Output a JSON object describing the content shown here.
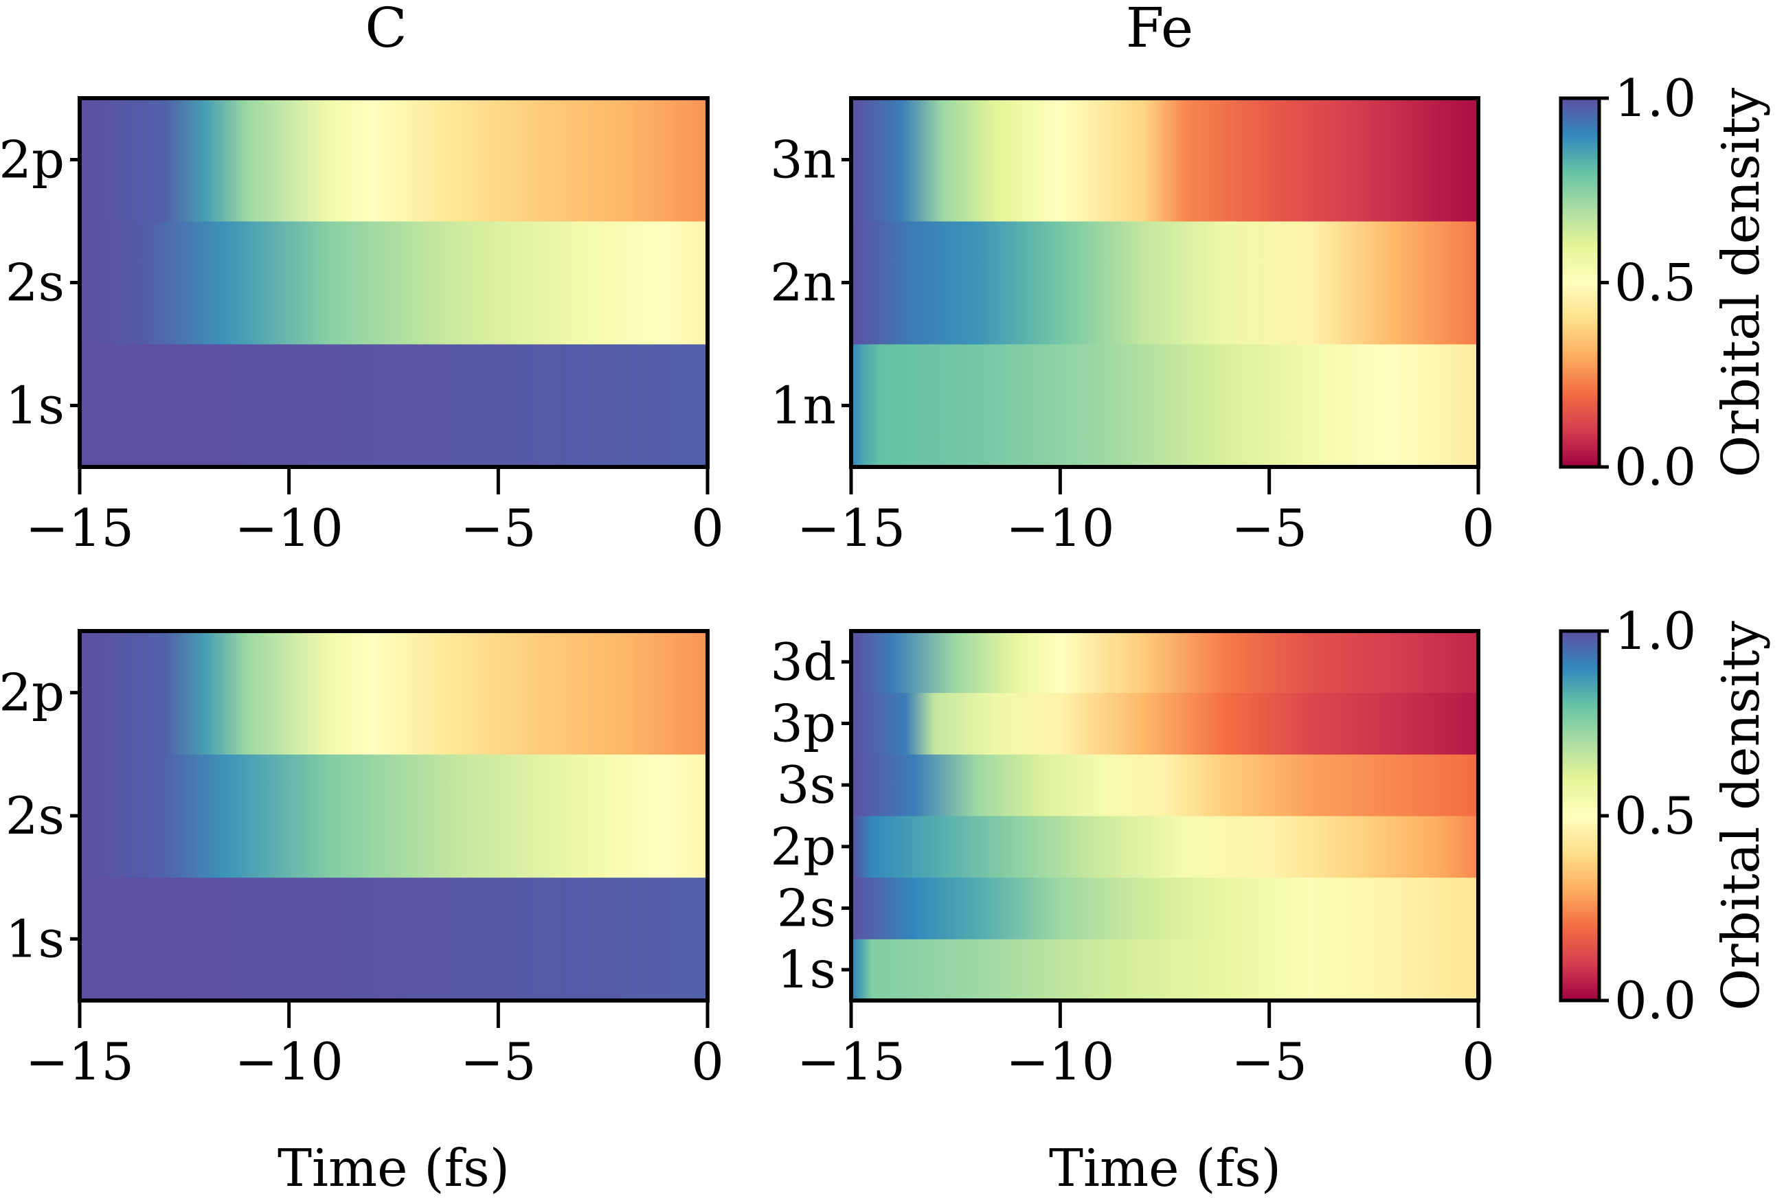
{
  "colormap": {
    "name": "Spectral",
    "stops": [
      "#9e0142",
      "#d53e4f",
      "#f46d43",
      "#fdae61",
      "#fee08b",
      "#ffffbf",
      "#e6f598",
      "#abdda4",
      "#66c2a5",
      "#3288bd",
      "#5e4fa2"
    ]
  },
  "chart_data": [
    {
      "type": "heatmap",
      "title": "C",
      "xlabel": "",
      "ylabel": "",
      "xlim": [
        -15,
        0
      ],
      "xticks": [
        -15,
        -10,
        -5,
        0
      ],
      "xtick_labels": [
        "−15",
        "−10",
        "−5",
        "0"
      ],
      "rows": [
        {
          "label": "1s",
          "t": [
            -15,
            -10,
            -5,
            0
          ],
          "values": [
            1.0,
            0.995,
            0.985,
            0.97
          ]
        },
        {
          "label": "2s",
          "t": [
            -15,
            -13.5,
            -11.5,
            -9,
            -6,
            -3,
            -1,
            0
          ],
          "values": [
            1.0,
            0.98,
            0.88,
            0.75,
            0.64,
            0.55,
            0.5,
            0.46
          ]
        },
        {
          "label": "2p",
          "t": [
            -15,
            -13,
            -12,
            -11,
            -9,
            -8,
            -6,
            -4,
            -2,
            0
          ],
          "values": [
            1.0,
            0.97,
            0.86,
            0.72,
            0.55,
            0.5,
            0.42,
            0.36,
            0.32,
            0.26
          ]
        }
      ]
    },
    {
      "type": "heatmap",
      "title": "Fe",
      "xlabel": "",
      "ylabel": "",
      "xlim": [
        -15,
        0
      ],
      "xticks": [
        -15,
        -10,
        -5,
        0
      ],
      "xtick_labels": [
        "−15",
        "−10",
        "−5",
        "0"
      ],
      "rows": [
        {
          "label": "1n",
          "t": [
            -15,
            -14.7,
            -14.3,
            -12,
            -9,
            -6,
            -4,
            -2,
            0
          ],
          "values": [
            0.9,
            0.85,
            0.8,
            0.78,
            0.72,
            0.62,
            0.55,
            0.5,
            0.44
          ]
        },
        {
          "label": "2n",
          "t": [
            -15,
            -13.5,
            -12,
            -10,
            -8,
            -6,
            -4,
            -2,
            0
          ],
          "values": [
            1.0,
            0.92,
            0.88,
            0.78,
            0.66,
            0.56,
            0.46,
            0.32,
            0.22
          ]
        },
        {
          "label": "3n",
          "t": [
            -15,
            -13.8,
            -12.8,
            -11.5,
            -10,
            -8,
            -7,
            -5,
            -3,
            0
          ],
          "values": [
            1.0,
            0.92,
            0.72,
            0.6,
            0.5,
            0.38,
            0.24,
            0.16,
            0.1,
            0.02
          ]
        }
      ]
    },
    {
      "type": "heatmap",
      "title": "",
      "xlabel": "Time (fs)",
      "ylabel": "",
      "xlim": [
        -15,
        0
      ],
      "xticks": [
        -15,
        -10,
        -5,
        0
      ],
      "xtick_labels": [
        "−15",
        "−10",
        "−5",
        "0"
      ],
      "rows": [
        {
          "label": "1s",
          "t": [
            -15,
            -10,
            -5,
            0
          ],
          "values": [
            1.0,
            0.995,
            0.985,
            0.97
          ]
        },
        {
          "label": "2s",
          "t": [
            -15,
            -13,
            -11.5,
            -9,
            -6,
            -3,
            -1,
            0
          ],
          "values": [
            1.0,
            0.97,
            0.88,
            0.76,
            0.66,
            0.56,
            0.5,
            0.47
          ]
        },
        {
          "label": "2p",
          "t": [
            -15,
            -13,
            -12,
            -11,
            -9,
            -8,
            -6,
            -4,
            -2,
            0
          ],
          "values": [
            1.0,
            0.97,
            0.86,
            0.72,
            0.55,
            0.5,
            0.42,
            0.36,
            0.32,
            0.26
          ]
        }
      ]
    },
    {
      "type": "heatmap",
      "title": "",
      "xlabel": "Time (fs)",
      "ylabel": "",
      "xlim": [
        -15,
        0
      ],
      "xticks": [
        -15,
        -10,
        -5,
        0
      ],
      "xtick_labels": [
        "−15",
        "−10",
        "−5",
        "0"
      ],
      "rows": [
        {
          "label": "1s",
          "t": [
            -15,
            -14.8,
            -14.5,
            -12,
            -9,
            -6,
            -4,
            -2,
            0
          ],
          "values": [
            0.92,
            0.86,
            0.76,
            0.72,
            0.64,
            0.58,
            0.52,
            0.46,
            0.42
          ]
        },
        {
          "label": "2s",
          "t": [
            -15,
            -13.5,
            -12,
            -10,
            -8,
            -6,
            -4,
            -2,
            0
          ],
          "values": [
            1.0,
            0.9,
            0.84,
            0.72,
            0.64,
            0.58,
            0.52,
            0.46,
            0.42
          ]
        },
        {
          "label": "2p",
          "t": [
            -15,
            -14.5,
            -13,
            -11,
            -9,
            -7,
            -5,
            -3,
            -1,
            0
          ],
          "values": [
            1.0,
            0.9,
            0.84,
            0.74,
            0.64,
            0.54,
            0.46,
            0.38,
            0.3,
            0.24
          ]
        },
        {
          "label": "3s",
          "t": [
            -15,
            -13.5,
            -12,
            -10.5,
            -9,
            -7.5,
            -6,
            -4,
            -2,
            0
          ],
          "values": [
            1.0,
            0.92,
            0.72,
            0.62,
            0.54,
            0.46,
            0.36,
            0.28,
            0.24,
            0.2
          ]
        },
        {
          "label": "3p",
          "t": [
            -15,
            -13.7,
            -13,
            -11.5,
            -10,
            -8,
            -6,
            -4,
            -2,
            0
          ],
          "values": [
            1.0,
            0.92,
            0.66,
            0.56,
            0.46,
            0.32,
            0.2,
            0.12,
            0.08,
            0.04
          ]
        },
        {
          "label": "3d",
          "t": [
            -15,
            -14,
            -12.5,
            -11,
            -10,
            -8,
            -6,
            -4,
            -2,
            0
          ],
          "values": [
            1.0,
            0.92,
            0.72,
            0.58,
            0.5,
            0.36,
            0.22,
            0.14,
            0.1,
            0.06
          ]
        }
      ]
    }
  ],
  "colorbars": [
    {
      "label": "Orbital density",
      "range": [
        0.0,
        1.0
      ],
      "ticks": [
        0.0,
        0.5,
        1.0
      ],
      "tick_labels": [
        "0.0",
        "0.5",
        "1.0"
      ]
    },
    {
      "label": "Orbital density",
      "range": [
        0.0,
        1.0
      ],
      "ticks": [
        0.0,
        0.5,
        1.0
      ],
      "tick_labels": [
        "0.0",
        "0.5",
        "1.0"
      ]
    }
  ]
}
